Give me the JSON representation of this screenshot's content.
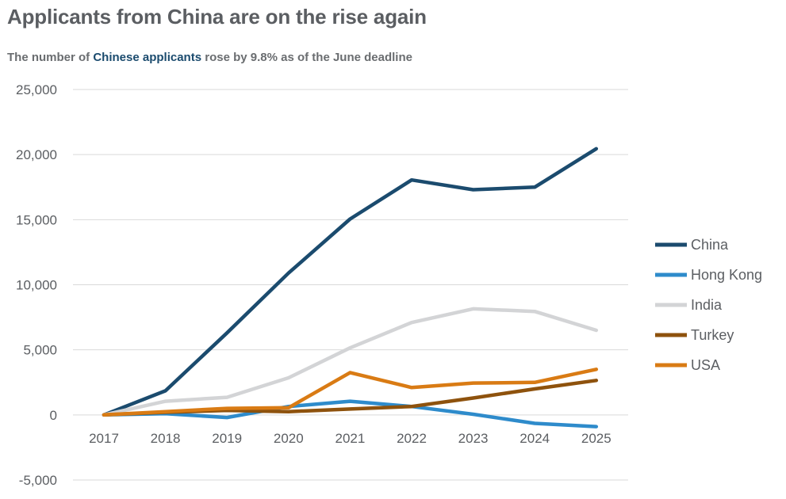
{
  "header": {
    "title": "Applicants from China are on the rise again",
    "subtitle_before": "The number of ",
    "subtitle_highlight": "Chinese applicants",
    "subtitle_after": " rose by 9.8% as of the June deadline"
  },
  "chart_data": {
    "type": "line",
    "title": "Applicants from China are on the rise again",
    "subtitle": "The number of Chinese applicants rose by 9.8% as of the June deadline",
    "xlabel": "",
    "ylabel": "",
    "x": [
      "2017",
      "2018",
      "2019",
      "2020",
      "2021",
      "2022",
      "2023",
      "2024",
      "2025"
    ],
    "ylim": [
      -5000,
      25000
    ],
    "yticks": [
      -5000,
      0,
      5000,
      10000,
      15000,
      20000,
      25000
    ],
    "ytick_labels": [
      "-5,000",
      "0",
      "5,000",
      "10,000",
      "15,000",
      "20,000",
      "25,000"
    ],
    "grid": "horizontal",
    "legend_position": "right",
    "series": [
      {
        "name": "China",
        "color": "#1b4b6e",
        "values": [
          0,
          1850,
          6300,
          10900,
          15050,
          18050,
          17300,
          17500,
          20450
        ]
      },
      {
        "name": "Hong Kong",
        "color": "#2e8bcb",
        "values": [
          0,
          100,
          -200,
          650,
          1050,
          650,
          50,
          -650,
          -900
        ]
      },
      {
        "name": "India",
        "color": "#d3d4d6",
        "values": [
          0,
          1050,
          1350,
          2850,
          5150,
          7100,
          8150,
          7950,
          6500
        ]
      },
      {
        "name": "Turkey",
        "color": "#8e520d",
        "values": [
          0,
          200,
          350,
          250,
          450,
          650,
          1300,
          2000,
          2650
        ]
      },
      {
        "name": "USA",
        "color": "#d97b14",
        "values": [
          0,
          250,
          500,
          550,
          3250,
          2100,
          2450,
          2500,
          3500
        ]
      }
    ]
  }
}
